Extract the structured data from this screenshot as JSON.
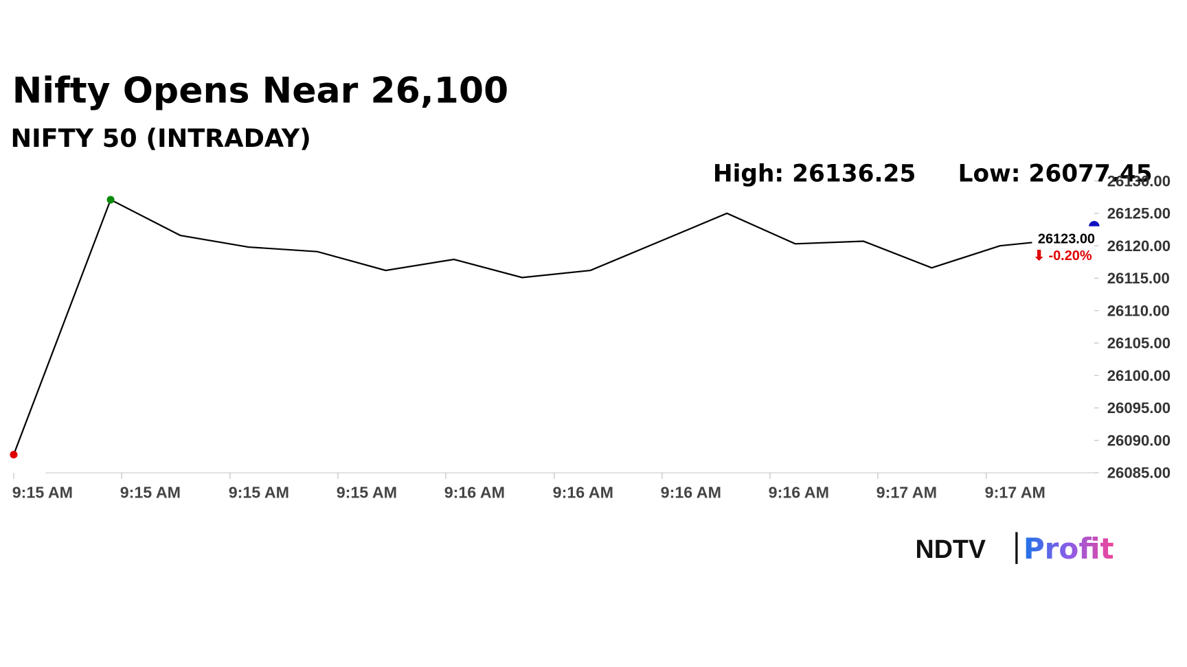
{
  "chart_data": {
    "type": "line",
    "title": "Nifty Opens Near 26,100",
    "subtitle": "NIFTY 50 (INTRADAY)",
    "high_label": "High: 26136.25",
    "low_label": "Low: 26077.45",
    "x": [
      0,
      1.42,
      2.44,
      3.44,
      4.45,
      5.45,
      6.45,
      7.45,
      8.45,
      9.45,
      10.45,
      11.45,
      12.45,
      13.45,
      14.45,
      14.92
    ],
    "series": [
      {
        "color": "#000000",
        "values": [
          26087.8,
          26127.1,
          26121.6,
          26119.8,
          26119.1,
          26116.2,
          26117.9,
          26115.1,
          26116.2,
          26120.6,
          26125.0,
          26120.3,
          26120.7,
          26116.6,
          26120.0,
          26120.5
        ]
      }
    ],
    "last_price": {
      "value": 26123,
      "label": "26123.00",
      "color": "#1010c0"
    },
    "change_label": "⬇ -0.20%",
    "change_color": "#e00000",
    "open_color": "#e00000",
    "high_color": "#0a8a0a",
    "xlim": [
      0,
      15.83
    ],
    "xticks": [
      {
        "value": 0,
        "label": "9:15 AM"
      },
      {
        "value": 1.58,
        "label": "9:15 AM"
      },
      {
        "value": 3.17,
        "label": "9:15 AM"
      },
      {
        "value": 4.75,
        "label": "9:15 AM"
      },
      {
        "value": 6.33,
        "label": "9:16 AM"
      },
      {
        "value": 7.92,
        "label": "9:16 AM"
      },
      {
        "value": 9.5,
        "label": "9:16 AM"
      },
      {
        "value": 11.08,
        "label": "9:16 AM"
      },
      {
        "value": 12.66,
        "label": "9:17 AM"
      },
      {
        "value": 14.25,
        "label": "9:17 AM"
      }
    ],
    "ylim": [
      26085,
      26130
    ],
    "yticks": [
      {
        "value": 26085,
        "label": "26085.00"
      },
      {
        "value": 26090,
        "label": "26090.00"
      },
      {
        "value": 26095,
        "label": "26095.00"
      },
      {
        "value": 26100,
        "label": "26100.00"
      },
      {
        "value": 26105,
        "label": "26105.00"
      },
      {
        "value": 26110,
        "label": "26110.00"
      },
      {
        "value": 26115,
        "label": "26115.00"
      },
      {
        "value": 26120,
        "label": "26120.00"
      },
      {
        "value": 26125,
        "label": "26125.00"
      },
      {
        "value": 26130,
        "label": "26130.00"
      }
    ],
    "brand": {
      "left": "NDTV",
      "right": "Profit"
    }
  }
}
